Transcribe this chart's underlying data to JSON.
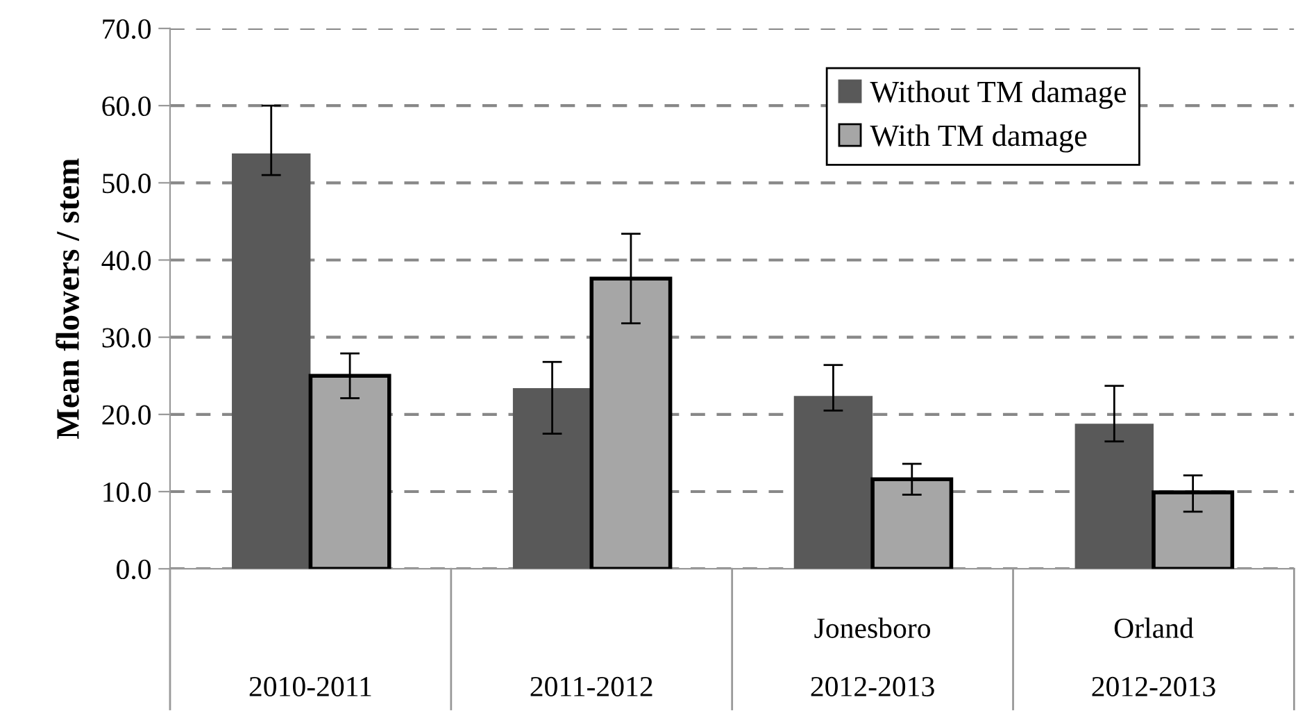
{
  "chart_data": {
    "type": "bar",
    "ylabel": "Mean flowers / stem",
    "categories": [
      "2010-2011",
      "2011-2012",
      "Jonesboro\n2012-2013",
      "Orland\n2012-2013"
    ],
    "series": [
      {
        "name": "Without TM damage",
        "color": "#595959",
        "values": [
          53.8,
          23.4,
          22.4,
          18.8
        ],
        "errors": [
          [
            51.0,
            60.0
          ],
          [
            17.5,
            26.8
          ],
          [
            20.5,
            26.4
          ],
          [
            16.5,
            23.7
          ]
        ]
      },
      {
        "name": "With TM damage",
        "color": "#a6a6a6",
        "values": [
          25.0,
          37.6,
          11.6,
          9.9
        ],
        "errors": [
          [
            22.1,
            27.9
          ],
          [
            31.8,
            43.4
          ],
          [
            9.6,
            13.6
          ],
          [
            7.4,
            12.1
          ]
        ]
      }
    ],
    "ylim": [
      0,
      70
    ],
    "yticks": [
      {
        "value": 0,
        "label": "0.0"
      },
      {
        "value": 10,
        "label": "10.0"
      },
      {
        "value": 20,
        "label": "20.0"
      },
      {
        "value": 30,
        "label": "30.0"
      },
      {
        "value": 40,
        "label": "40.0"
      },
      {
        "value": 50,
        "label": "50.0"
      },
      {
        "value": 60,
        "label": "60.0"
      },
      {
        "value": 70,
        "label": "70.0"
      }
    ],
    "grid": "y",
    "legend": "top right"
  }
}
